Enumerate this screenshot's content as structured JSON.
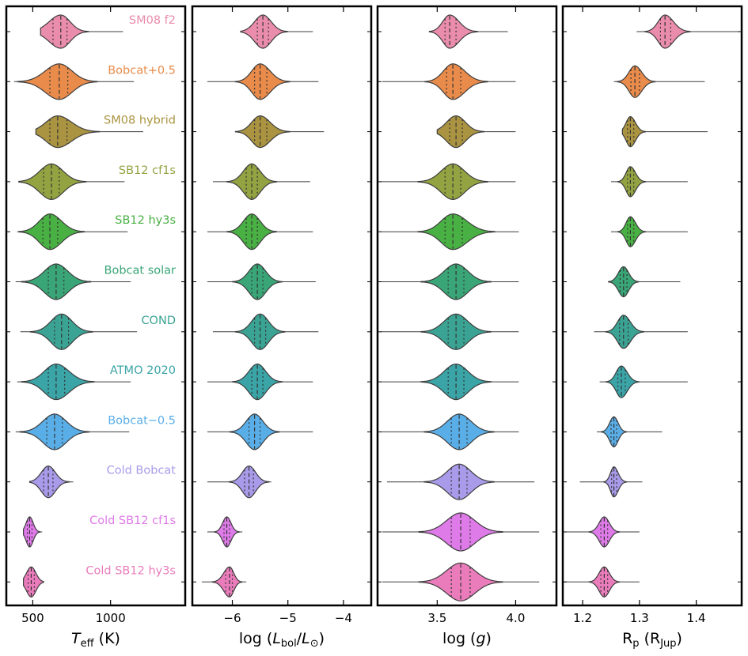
{
  "chart_data": [
    {
      "type": "violin",
      "xlabel": "T_eff (K)",
      "xlabel_main": "T",
      "xlabel_sub": "eff",
      "xlabel_tail": " (K)",
      "xlim": [
        330,
        1480
      ],
      "xticks": [
        500,
        1000
      ],
      "tick_labels": [
        "500",
        "1000"
      ],
      "series": [
        {
          "name": "SM08 f2",
          "median": 680,
          "q1": 630,
          "q3": 720,
          "min": 550,
          "max": 1080,
          "width": 42
        },
        {
          "name": "Bobcat+0.5",
          "median": 670,
          "q1": 610,
          "q3": 725,
          "min": 380,
          "max": 1150,
          "width": 45
        },
        {
          "name": "SM08 hybrid",
          "median": 660,
          "q1": 610,
          "q3": 720,
          "min": 520,
          "max": 1210,
          "width": 40
        },
        {
          "name": "SB12 cf1s",
          "median": 620,
          "q1": 570,
          "q3": 670,
          "min": 410,
          "max": 1090,
          "width": 45
        },
        {
          "name": "SB12 hy3s",
          "median": 610,
          "q1": 565,
          "q3": 660,
          "min": 400,
          "max": 1110,
          "width": 45
        },
        {
          "name": "Bobcat solar",
          "median": 650,
          "q1": 600,
          "q3": 700,
          "min": 390,
          "max": 1130,
          "width": 45
        },
        {
          "name": "COND",
          "median": 685,
          "q1": 640,
          "q3": 730,
          "min": 420,
          "max": 1170,
          "width": 45
        },
        {
          "name": "ATMO 2020",
          "median": 650,
          "q1": 600,
          "q3": 705,
          "min": 400,
          "max": 1130,
          "width": 45
        },
        {
          "name": "Bobcat−0.5",
          "median": 640,
          "q1": 590,
          "q3": 690,
          "min": 390,
          "max": 1120,
          "width": 45
        },
        {
          "name": "Cold Bobcat",
          "median": 600,
          "q1": 570,
          "q3": 630,
          "min": 480,
          "max": 760,
          "width": 40
        },
        {
          "name": "Cold SB12 cf1s",
          "median": 480,
          "q1": 465,
          "q3": 495,
          "min": 440,
          "max": 560,
          "width": 38
        },
        {
          "name": "Cold SB12 hy3s",
          "median": 490,
          "q1": 470,
          "q3": 510,
          "min": 440,
          "max": 570,
          "width": 38
        }
      ]
    },
    {
      "type": "violin",
      "xlabel": "log (L_bol/L_sun)",
      "xlabel_main": "log (",
      "xlabel_italic": "L",
      "xlabel_sub": "bol",
      "xlabel_mid": "/",
      "xlabel_italic2": "L",
      "xlabel_sub2": "⊙",
      "xlabel_tail": ")",
      "xlim": [
        -6.72,
        -3.5
      ],
      "xticks": [
        -6,
        -5,
        -4
      ],
      "tick_labels": [
        "−6",
        "−5",
        "−4"
      ],
      "series": [
        {
          "name": "SM08 f2",
          "median": -5.45,
          "q1": -5.55,
          "q3": -5.35,
          "min": -5.85,
          "max": -4.55,
          "width": 42
        },
        {
          "name": "Bobcat+0.5",
          "median": -5.5,
          "q1": -5.6,
          "q3": -5.38,
          "min": -6.45,
          "max": -4.45,
          "width": 45
        },
        {
          "name": "SM08 hybrid",
          "median": -5.5,
          "q1": -5.6,
          "q3": -5.38,
          "min": -5.95,
          "max": -4.35,
          "width": 40
        },
        {
          "name": "SB12 cf1s",
          "median": -5.65,
          "q1": -5.75,
          "q3": -5.55,
          "min": -6.35,
          "max": -4.6,
          "width": 45
        },
        {
          "name": "SB12 hy3s",
          "median": -5.65,
          "q1": -5.75,
          "q3": -5.55,
          "min": -6.45,
          "max": -4.55,
          "width": 45
        },
        {
          "name": "Bobcat solar",
          "median": -5.55,
          "q1": -5.65,
          "q3": -5.45,
          "min": -6.45,
          "max": -4.5,
          "width": 45
        },
        {
          "name": "COND",
          "median": -5.5,
          "q1": -5.6,
          "q3": -5.4,
          "min": -6.35,
          "max": -4.45,
          "width": 45
        },
        {
          "name": "ATMO 2020",
          "median": -5.55,
          "q1": -5.65,
          "q3": -5.45,
          "min": -6.45,
          "max": -4.55,
          "width": 45
        },
        {
          "name": "Bobcat−0.5",
          "median": -5.6,
          "q1": -5.7,
          "q3": -5.5,
          "min": -6.45,
          "max": -4.55,
          "width": 45
        },
        {
          "name": "Cold Bobcat",
          "median": -5.7,
          "q1": -5.78,
          "q3": -5.62,
          "min": -6.45,
          "max": -5.3,
          "width": 40
        },
        {
          "name": "Cold SB12 cf1s",
          "median": -6.1,
          "q1": -6.15,
          "q3": -6.05,
          "min": -6.45,
          "max": -5.82,
          "width": 38
        },
        {
          "name": "Cold SB12 hy3s",
          "median": -6.05,
          "q1": -6.12,
          "q3": -6.0,
          "min": -6.55,
          "max": -5.75,
          "width": 38
        }
      ]
    },
    {
      "type": "violin",
      "xlabel": "log (g)",
      "xlabel_main": "log (",
      "xlabel_italic": "g",
      "xlabel_tail": ")",
      "xlim": [
        3.12,
        4.26
      ],
      "xticks": [
        3.5,
        4.0
      ],
      "tick_labels": [
        "3.5",
        "4.0"
      ],
      "series": [
        {
          "name": "SM08 f2",
          "median": 3.58,
          "q1": 3.55,
          "q3": 3.62,
          "min": 3.45,
          "max": 3.95,
          "width": 42
        },
        {
          "name": "Bobcat+0.5",
          "median": 3.6,
          "q1": 3.56,
          "q3": 3.65,
          "min": 3.15,
          "max": 4.0,
          "width": 45
        },
        {
          "name": "SM08 hybrid",
          "median": 3.62,
          "q1": 3.58,
          "q3": 3.66,
          "min": 3.5,
          "max": 4.0,
          "width": 40
        },
        {
          "name": "SB12 cf1s",
          "median": 3.6,
          "q1": 3.55,
          "q3": 3.65,
          "min": 3.14,
          "max": 4.0,
          "width": 45
        },
        {
          "name": "SB12 hy3s",
          "median": 3.6,
          "q1": 3.55,
          "q3": 3.66,
          "min": 3.14,
          "max": 4.02,
          "width": 45
        },
        {
          "name": "Bobcat solar",
          "median": 3.62,
          "q1": 3.57,
          "q3": 3.67,
          "min": 3.14,
          "max": 4.02,
          "width": 45
        },
        {
          "name": "COND",
          "median": 3.62,
          "q1": 3.57,
          "q3": 3.67,
          "min": 3.14,
          "max": 4.02,
          "width": 45
        },
        {
          "name": "ATMO 2020",
          "median": 3.62,
          "q1": 3.57,
          "q3": 3.67,
          "min": 3.14,
          "max": 4.02,
          "width": 45
        },
        {
          "name": "Bobcat−0.5",
          "median": 3.64,
          "q1": 3.59,
          "q3": 3.69,
          "min": 3.14,
          "max": 4.02,
          "width": 45
        },
        {
          "name": "Cold Bobcat",
          "median": 3.64,
          "q1": 3.59,
          "q3": 3.69,
          "min": 3.18,
          "max": 4.12,
          "width": 45
        },
        {
          "name": "Cold SB12 cf1s",
          "median": 3.65,
          "q1": 3.59,
          "q3": 3.71,
          "min": 3.15,
          "max": 4.15,
          "width": 48
        },
        {
          "name": "Cold SB12 hy3s",
          "median": 3.65,
          "q1": 3.59,
          "q3": 3.71,
          "min": 3.15,
          "max": 4.15,
          "width": 48
        }
      ]
    },
    {
      "type": "violin",
      "xlabel": "R_p (R_Jup)",
      "xlabel_main": "R",
      "xlabel_sub": "p",
      "xlabel_mid": " (R",
      "xlabel_sub2": "Jup",
      "xlabel_tail": ")",
      "xlim": [
        1.165,
        1.48
      ],
      "xticks": [
        1.2,
        1.3,
        1.4
      ],
      "tick_labels": [
        "1.2",
        "1.3",
        "1.4"
      ],
      "series": [
        {
          "name": "SM08 f2",
          "median": 1.345,
          "q1": 1.337,
          "q3": 1.355,
          "min": 1.295,
          "max": 1.48,
          "width": 42
        },
        {
          "name": "Bobcat+0.5",
          "median": 1.292,
          "q1": 1.285,
          "q3": 1.3,
          "min": 1.255,
          "max": 1.415,
          "width": 40
        },
        {
          "name": "SM08 hybrid",
          "median": 1.284,
          "q1": 1.279,
          "q3": 1.29,
          "min": 1.27,
          "max": 1.42,
          "width": 38
        },
        {
          "name": "SB12 cf1s",
          "median": 1.284,
          "q1": 1.279,
          "q3": 1.29,
          "min": 1.25,
          "max": 1.385,
          "width": 38
        },
        {
          "name": "SB12 hy3s",
          "median": 1.284,
          "q1": 1.279,
          "q3": 1.29,
          "min": 1.25,
          "max": 1.385,
          "width": 38
        },
        {
          "name": "Bobcat solar",
          "median": 1.272,
          "q1": 1.266,
          "q3": 1.278,
          "min": 1.245,
          "max": 1.372,
          "width": 38
        },
        {
          "name": "COND",
          "median": 1.272,
          "q1": 1.265,
          "q3": 1.28,
          "min": 1.22,
          "max": 1.385,
          "width": 42
        },
        {
          "name": "ATMO 2020",
          "median": 1.268,
          "q1": 1.262,
          "q3": 1.275,
          "min": 1.23,
          "max": 1.385,
          "width": 40
        },
        {
          "name": "Bobcat−0.5",
          "median": 1.255,
          "q1": 1.25,
          "q3": 1.26,
          "min": 1.225,
          "max": 1.34,
          "width": 38
        },
        {
          "name": "Cold Bobcat",
          "median": 1.255,
          "q1": 1.251,
          "q3": 1.26,
          "min": 1.195,
          "max": 1.305,
          "width": 38
        },
        {
          "name": "Cold SB12 cf1s",
          "median": 1.238,
          "q1": 1.232,
          "q3": 1.244,
          "min": 1.165,
          "max": 1.3,
          "width": 38
        },
        {
          "name": "Cold SB12 hy3s",
          "median": 1.238,
          "q1": 1.232,
          "q3": 1.244,
          "min": 1.165,
          "max": 1.3,
          "width": 38
        }
      ]
    }
  ],
  "models": [
    {
      "name": "SM08 f2",
      "color": "#ea8cac"
    },
    {
      "name": "Bobcat+0.5",
      "color": "#e98b4a"
    },
    {
      "name": "SM08 hybrid",
      "color": "#ab9441"
    },
    {
      "name": "SB12 cf1s",
      "color": "#93a342"
    },
    {
      "name": "SB12 hy3s",
      "color": "#49b043"
    },
    {
      "name": "Bobcat solar",
      "color": "#3aa577"
    },
    {
      "name": "COND",
      "color": "#3ba393"
    },
    {
      "name": "ATMO 2020",
      "color": "#3ba4a7"
    },
    {
      "name": "Bobcat−0.5",
      "color": "#5aaee7"
    },
    {
      "name": "Cold Bobcat",
      "color": "#a99be9"
    },
    {
      "name": "Cold SB12 cf1s",
      "color": "#df7ae9"
    },
    {
      "name": "Cold SB12 hy3s",
      "color": "#ea7cbc"
    }
  ]
}
